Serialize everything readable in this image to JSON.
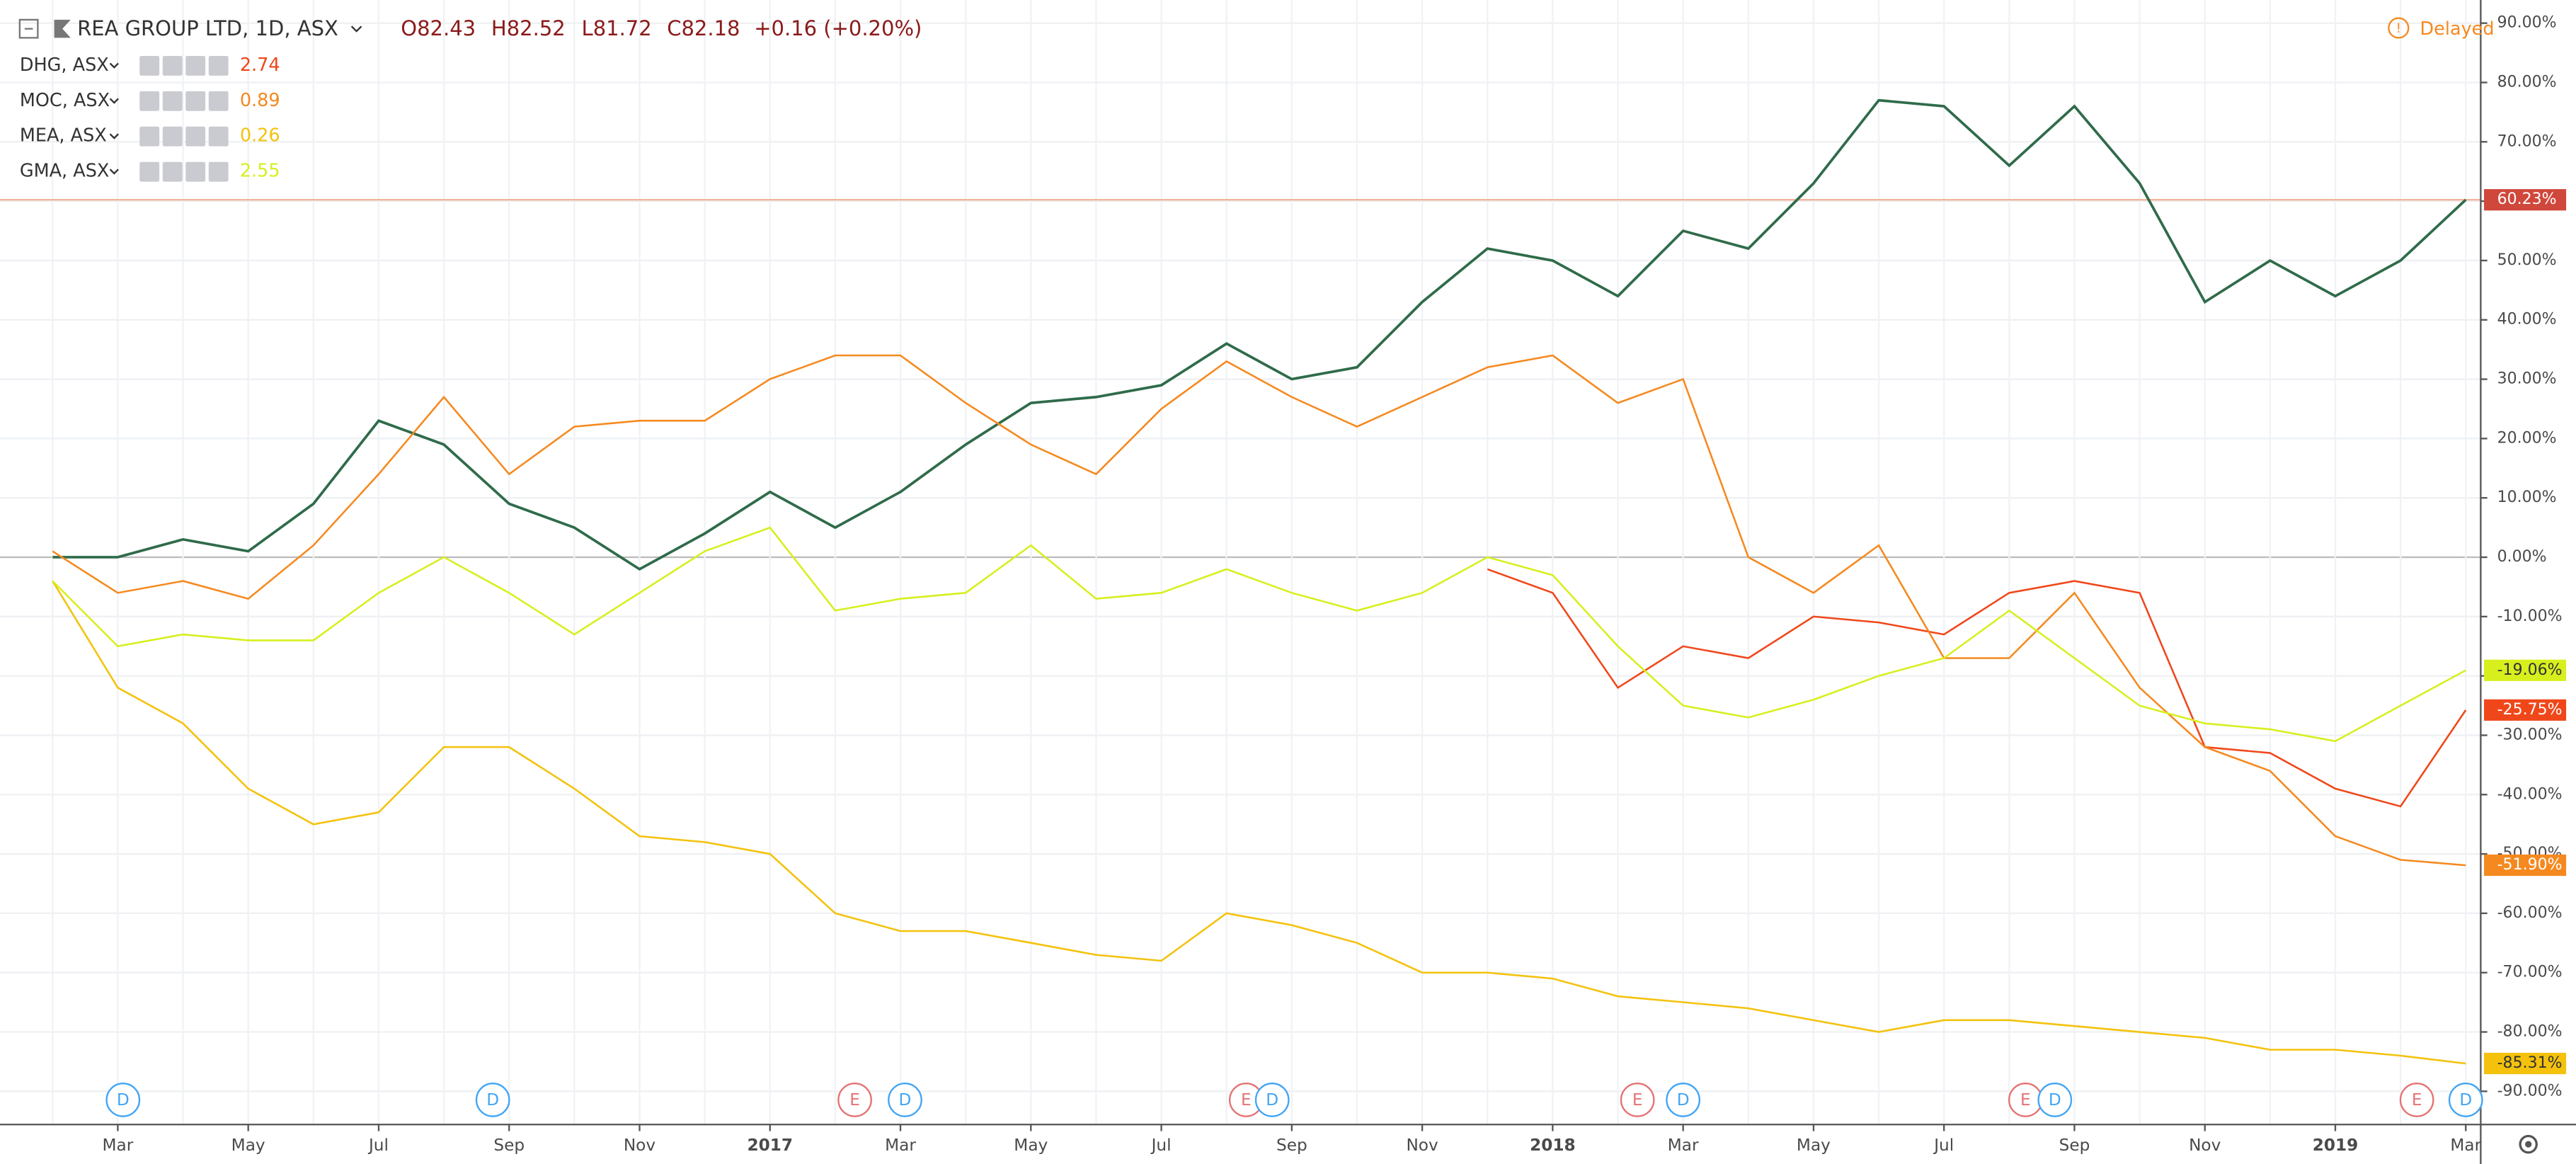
{
  "chart_data": {
    "type": "line",
    "header": {
      "symbol": "REA GROUP LTD, 1D, ASX",
      "open": "O82.43",
      "high": "H82.52",
      "low": "L81.72",
      "close": "C82.18",
      "change": "+0.16 (+0.20%)",
      "status": "Delayed"
    },
    "categories": [
      null,
      "Mar",
      null,
      "May",
      null,
      "Jul",
      null,
      "Sep",
      null,
      "Nov",
      null,
      "2017",
      null,
      "Mar",
      null,
      "May",
      null,
      "Jul",
      null,
      "Sep",
      null,
      "Nov",
      null,
      "2018",
      null,
      "Mar",
      null,
      "May",
      null,
      "Jul",
      null,
      "Sep",
      null,
      "Nov",
      null,
      "2019",
      null,
      "Mar"
    ],
    "ylim": [
      -95.6,
      93.9
    ],
    "yticks": [
      {
        "value": -90,
        "label": "-90.00%"
      },
      {
        "value": -80,
        "label": "-80.00%"
      },
      {
        "value": -70,
        "label": "-70.00%"
      },
      {
        "value": -60,
        "label": "-60.00%"
      },
      {
        "value": -50,
        "label": "-50.00%"
      },
      {
        "value": -40,
        "label": "-40.00%"
      },
      {
        "value": -30,
        "label": "-30.00%"
      },
      {
        "value": -20,
        "label": "-20.00%"
      },
      {
        "value": -10,
        "label": "-10.00%"
      },
      {
        "value": 0,
        "label": "0.00%"
      },
      {
        "value": 10,
        "label": "10.00%"
      },
      {
        "value": 20,
        "label": "20.00%"
      },
      {
        "value": 30,
        "label": "30.00%"
      },
      {
        "value": 40,
        "label": "40.00%"
      },
      {
        "value": 50,
        "label": "50.00%"
      },
      {
        "value": 60,
        "label": "60.00%"
      },
      {
        "value": 70,
        "label": "70.00%"
      },
      {
        "value": 80,
        "label": "80.00%"
      },
      {
        "value": 90,
        "label": "90.00%"
      }
    ],
    "grid": true,
    "series": [
      {
        "name": "REA",
        "color": "#2f6b4a",
        "last_label": "60.23%",
        "label_color": "#d0473b",
        "values": [
          0,
          0,
          3,
          1,
          9,
          23,
          19,
          9,
          5,
          -2,
          4,
          11,
          5,
          11,
          19,
          26,
          27,
          29,
          36,
          30,
          32,
          43,
          52,
          50,
          44,
          55,
          52,
          63,
          77,
          76,
          66,
          76,
          63,
          43,
          50,
          44,
          50,
          60.23
        ]
      },
      {
        "name": "DHG, ASX",
        "price": "2.74",
        "color": "#f0471a",
        "last_label": "-25.75%",
        "label_color": "#f0471a",
        "values": [
          null,
          null,
          null,
          null,
          null,
          null,
          null,
          null,
          null,
          null,
          null,
          null,
          null,
          null,
          null,
          null,
          null,
          null,
          null,
          null,
          null,
          null,
          -2,
          -6,
          -22,
          -15,
          -17,
          -10,
          -11,
          -13,
          -6,
          -4,
          -6,
          -32,
          -33,
          -39,
          -42,
          -25.75
        ]
      },
      {
        "name": "MOC, ASX",
        "price": "0.89",
        "color": "#f5891f",
        "last_label": "-51.90%",
        "label_color": "#f5891f",
        "values": [
          1,
          -6,
          -4,
          -7,
          2,
          14,
          27,
          14,
          22,
          23,
          23,
          30,
          34,
          34,
          26,
          19,
          14,
          25,
          33,
          27,
          22,
          27,
          32,
          34,
          26,
          30,
          0,
          -6,
          2,
          -17,
          -17,
          -6,
          -22,
          -32,
          -36,
          -47,
          -51,
          -51.9
        ]
      },
      {
        "name": "MEA, ASX",
        "price": "0.26",
        "color": "#f4c20d",
        "last_label": "-85.31%",
        "label_color": "#f4c20d",
        "values": [
          -4,
          -22,
          -28,
          -39,
          -45,
          -43,
          -32,
          -32,
          -39,
          -47,
          -48,
          -50,
          -60,
          -63,
          -63,
          -65,
          -67,
          -68,
          -60,
          -62,
          -65,
          -70,
          -70,
          -71,
          -74,
          -75,
          -76,
          -78,
          -80,
          -78,
          -78,
          -79,
          -80,
          -81,
          -83,
          -83,
          -84,
          -85.31
        ]
      },
      {
        "name": "GMA, ASX",
        "price": "2.55",
        "color": "#d7ef1d",
        "last_label": "-19.06%",
        "label_color": "#d7ef1d",
        "values": [
          -4,
          -15,
          -13,
          -14,
          -14,
          -6,
          0,
          -6,
          -13,
          -6,
          1,
          5,
          -9,
          -7,
          -6,
          2,
          -7,
          -6,
          -2,
          -6,
          -9,
          -6,
          0,
          -3,
          -15,
          -25,
          -27,
          -24,
          -20,
          -17,
          -9,
          -17,
          -25,
          -28,
          -29,
          -31,
          -25,
          -19.06
        ]
      }
    ],
    "events": [
      {
        "label": "D",
        "x": 1.08
      },
      {
        "label": "D",
        "x": 6.75
      },
      {
        "label": "E",
        "x": 12.3
      },
      {
        "label": "D",
        "x": 13.07
      },
      {
        "label": "E",
        "x": 18.3
      },
      {
        "label": "D",
        "x": 18.7
      },
      {
        "label": "E",
        "x": 24.3
      },
      {
        "label": "D",
        "x": 25.0
      },
      {
        "label": "E",
        "x": 30.25
      },
      {
        "label": "D",
        "x": 30.7
      },
      {
        "label": "E",
        "x": 36.25
      },
      {
        "label": "D",
        "x": 37.0
      }
    ]
  }
}
